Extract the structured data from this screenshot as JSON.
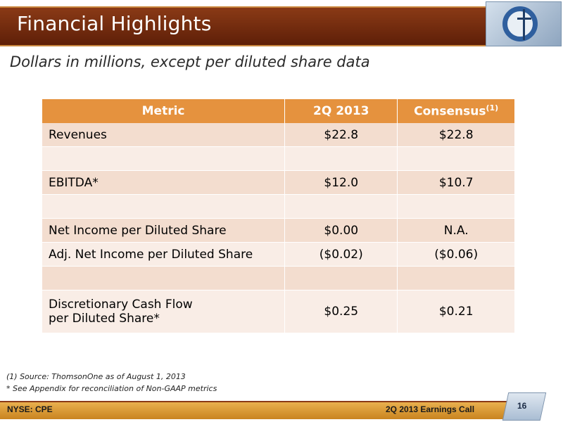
{
  "header": {
    "title": "Financial Highlights"
  },
  "subtitle": "Dollars in millions, except per diluted share data",
  "table": {
    "headers": {
      "metric": "Metric",
      "period": "2Q 2013",
      "consensus": "Consensus",
      "consensus_sup": "(1)"
    },
    "rows": [
      {
        "metric": "Revenues",
        "period": "$22.8",
        "consensus": "$22.8"
      },
      {
        "metric": "",
        "period": "",
        "consensus": ""
      },
      {
        "metric": "EBITDA*",
        "period": "$12.0",
        "consensus": "$10.7"
      },
      {
        "metric": "",
        "period": "",
        "consensus": ""
      },
      {
        "metric": "Net Income per Diluted Share",
        "period": "$0.00",
        "consensus": "N.A."
      },
      {
        "metric": "Adj. Net Income per Diluted Share",
        "period": "($0.02)",
        "consensus": "($0.06)"
      },
      {
        "metric": "",
        "period": "",
        "consensus": ""
      },
      {
        "metric_line1": "Discretionary Cash Flow",
        "metric_line2": "per Diluted Share*",
        "period": "$0.25",
        "consensus": "$0.21"
      }
    ]
  },
  "footnotes": [
    "(1) Source: ThomsonOne as of August 1, 2013",
    "* See Appendix for reconciliation of Non-GAAP metrics"
  ],
  "footer": {
    "ticker": "NYSE: CPE",
    "event": "2Q 2013 Earnings Call",
    "page": "16"
  },
  "colors": {
    "header_bg": "#6e2a0f",
    "table_header": "#e5923e",
    "row_odd": "#f3ddcf",
    "row_even": "#f9ede6",
    "footer_bg": "#d9982f"
  },
  "icons": {
    "logo": "company-logo-derrick-icon"
  }
}
